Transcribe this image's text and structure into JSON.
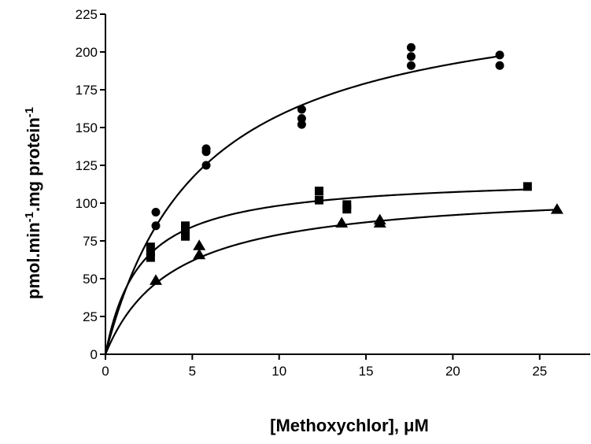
{
  "chart_data": {
    "type": "scatter",
    "xlabel": "[Methoxychlor],  μM",
    "ylabel_parts": [
      "pmol.min",
      "-1",
      ".mg protein",
      "-1"
    ],
    "xlim": [
      0,
      28
    ],
    "ylim": [
      0,
      225
    ],
    "x_ticks": [
      0,
      5,
      10,
      15,
      20,
      25
    ],
    "y_ticks": [
      0,
      25,
      50,
      75,
      100,
      125,
      150,
      175,
      200,
      225
    ],
    "grid": false,
    "series": [
      {
        "marker": "circle",
        "color": "#000000",
        "points": [
          [
            2.9,
            94
          ],
          [
            2.9,
            85
          ],
          [
            5.8,
            136
          ],
          [
            5.8,
            134
          ],
          [
            5.8,
            125
          ],
          [
            11.3,
            162
          ],
          [
            11.3,
            156
          ],
          [
            11.3,
            152
          ],
          [
            17.6,
            203
          ],
          [
            17.6,
            197
          ],
          [
            17.6,
            191
          ],
          [
            22.7,
            198
          ],
          [
            22.7,
            191
          ]
        ],
        "fit": {
          "model": "michaelis-menten",
          "vmax": 245,
          "km": 5.5
        }
      },
      {
        "marker": "square",
        "color": "#000000",
        "points": [
          [
            2.6,
            71
          ],
          [
            2.6,
            68
          ],
          [
            2.6,
            64
          ],
          [
            4.6,
            85
          ],
          [
            4.6,
            82
          ],
          [
            4.6,
            78
          ],
          [
            12.3,
            108
          ],
          [
            12.3,
            102
          ],
          [
            13.9,
            99
          ],
          [
            13.9,
            96
          ],
          [
            24.3,
            111
          ]
        ],
        "fit": {
          "model": "michaelis-menten",
          "vmax": 118,
          "km": 2.0
        }
      },
      {
        "marker": "triangle",
        "color": "#000000",
        "points": [
          [
            2.9,
            49
          ],
          [
            5.4,
            72
          ],
          [
            5.4,
            66
          ],
          [
            13.6,
            87
          ],
          [
            15.8,
            89
          ],
          [
            15.8,
            87
          ],
          [
            26.0,
            96
          ]
        ],
        "fit": {
          "model": "michaelis-menten",
          "vmax": 110,
          "km": 3.9
        }
      }
    ]
  }
}
